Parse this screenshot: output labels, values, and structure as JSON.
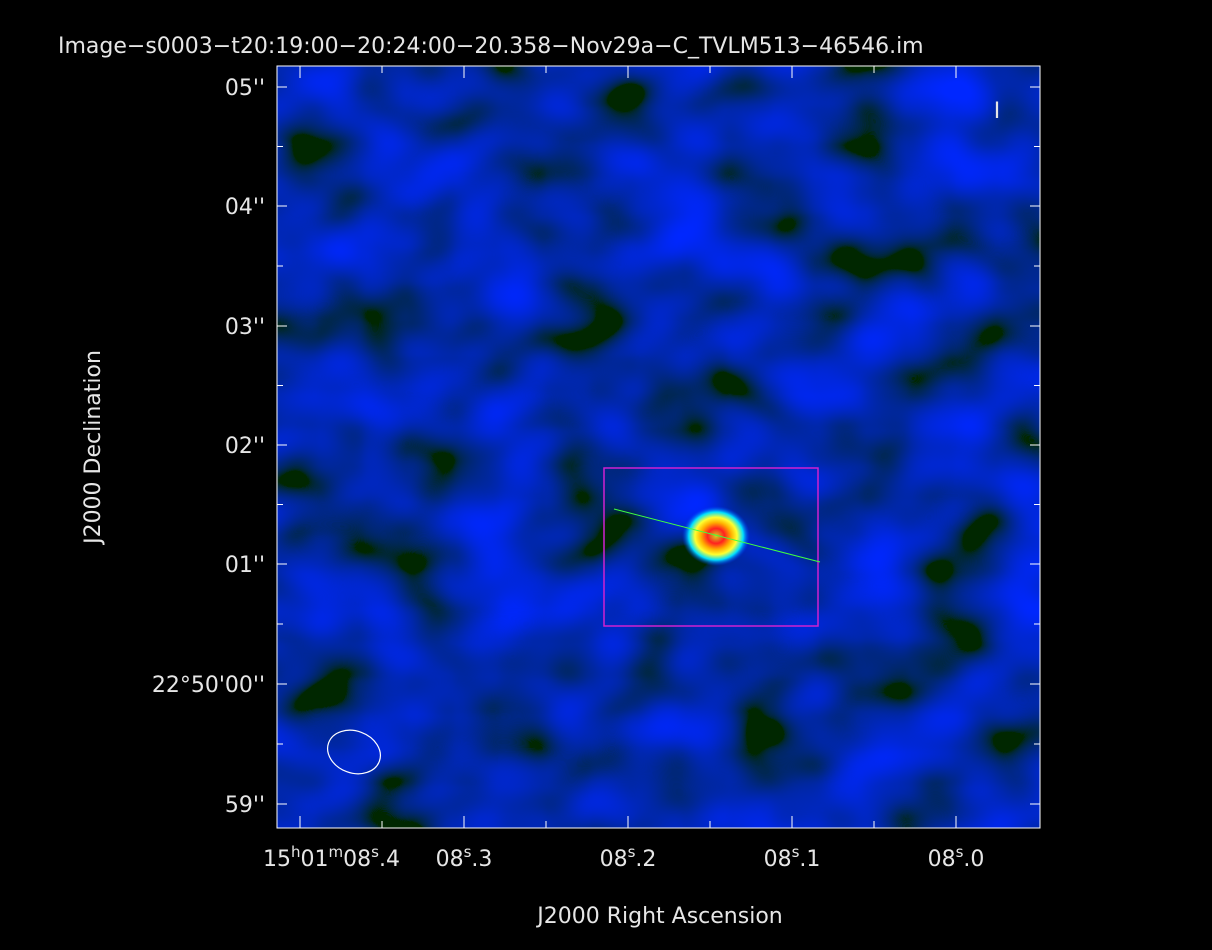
{
  "title": "Image−s0003−t20:19:00−20:24:00−20.358−Nov29a−C_TVLM513−46546.im",
  "stokes": "I",
  "x_axis": {
    "label": "J2000 Right Ascension",
    "ticks": [
      [
        {
          "text": "15"
        },
        {
          "sup": "h"
        },
        {
          "text": "01"
        },
        {
          "sup": "m"
        },
        {
          "text": "08"
        },
        {
          "sup": "s"
        },
        {
          "text": ".4"
        }
      ],
      [
        {
          "text": "08"
        },
        {
          "sup": "s"
        },
        {
          "text": ".3"
        }
      ],
      [
        {
          "text": "08"
        },
        {
          "sup": "s"
        },
        {
          "text": ".2"
        }
      ],
      [
        {
          "text": "08"
        },
        {
          "sup": "s"
        },
        {
          "text": ".1"
        }
      ],
      [
        {
          "text": "08"
        },
        {
          "sup": "s"
        },
        {
          "text": ".0"
        }
      ]
    ]
  },
  "y_axis": {
    "label": "J2000 Declination",
    "ticks": [
      "05''",
      "04''",
      "03''",
      "02''",
      "01''",
      "22°50'00''",
      "59''"
    ]
  }
}
